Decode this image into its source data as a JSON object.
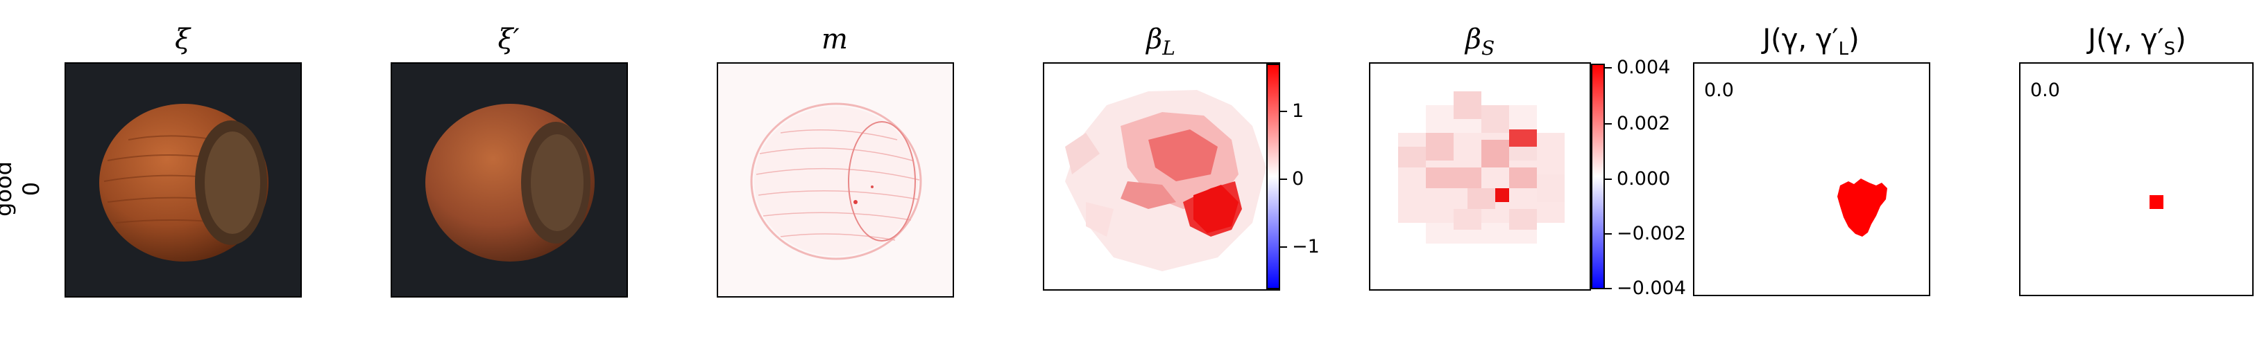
{
  "row_label": {
    "line1": "good",
    "line2": "0"
  },
  "titles": {
    "xi": "ξ",
    "xi_prime": "ξ′",
    "m": "m",
    "beta_l": "β",
    "beta_l_sub": "L",
    "beta_s": "β",
    "beta_s_sub": "S",
    "j_l_prefix": "J(γ, γ′",
    "j_l_sub": "L",
    "j_l_suffix": ")",
    "j_s_prefix": "J(γ, γ′",
    "j_s_sub": "S",
    "j_s_suffix": ")"
  },
  "colorbar_l": {
    "ticks": [
      "1",
      "0",
      "−1"
    ],
    "colormap": [
      "#ff0000",
      "#ffffff",
      "#0000ff"
    ]
  },
  "colorbar_s": {
    "ticks": [
      "0.004",
      "0.002",
      "0.000",
      "−0.002",
      "−0.004"
    ],
    "colormap": [
      "#ff0000",
      "#ffffff",
      "#0000ff"
    ]
  },
  "scores": {
    "j_l": "0.0",
    "j_s": "0.0"
  },
  "colors": {
    "background": "#ffffff",
    "accent": "#ff0000",
    "photo_bg": "#1c1f24",
    "nut": "#a85428"
  }
}
